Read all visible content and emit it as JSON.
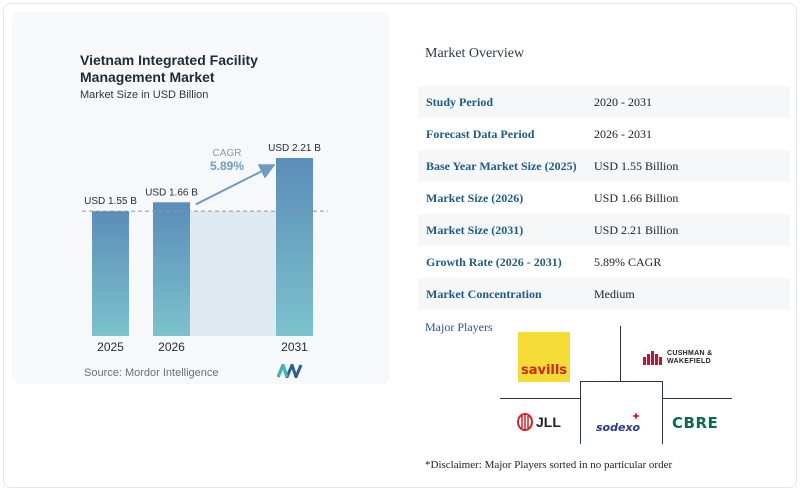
{
  "chart_data": {
    "type": "bar",
    "title": "Vietnam Integrated Facility Management Market",
    "subtitle": "Market Size in USD Billion",
    "categories": [
      "2025",
      "2026",
      "2031"
    ],
    "values": [
      1.55,
      1.66,
      2.21
    ],
    "data_labels": [
      "USD 1.55 B",
      "USD 1.66 B",
      "USD 2.21 B"
    ],
    "ylim": [
      0,
      2.21
    ],
    "reference_line_value": 1.55,
    "cagr_label": "CAGR",
    "cagr_value": "5.89%",
    "grid": false,
    "colors": {
      "bar_top": "#5b8db9",
      "bar_bottom": "#7cc2cc",
      "band": "#dfe9f2",
      "cagr": "#6d9bc3"
    }
  },
  "source": "Source: Mordor Intelligence",
  "overview": {
    "title": "Market Overview",
    "rows": [
      {
        "label": "Study Period",
        "value": "2020 - 2031"
      },
      {
        "label": "Forecast Data Period",
        "value": "2026 - 2031"
      },
      {
        "label": "Base Year Market Size (2025)",
        "value": "USD 1.55 Billion"
      },
      {
        "label": "Market Size (2026)",
        "value": "USD 1.66 Billion"
      },
      {
        "label": "Market Size (2031)",
        "value": "USD 2.21 Billion"
      },
      {
        "label": "Growth Rate (2026 - 2031)",
        "value": "5.89% CAGR"
      },
      {
        "label": "Market Concentration",
        "value": "Medium"
      }
    ]
  },
  "players": {
    "title": "Major Players",
    "logos": [
      "savills",
      "CUSHMAN & WAKEFIELD",
      "JLL",
      "sodexo",
      "CBRE"
    ]
  },
  "disclaimer": "*Disclaimer: Major Players sorted in no particular order"
}
